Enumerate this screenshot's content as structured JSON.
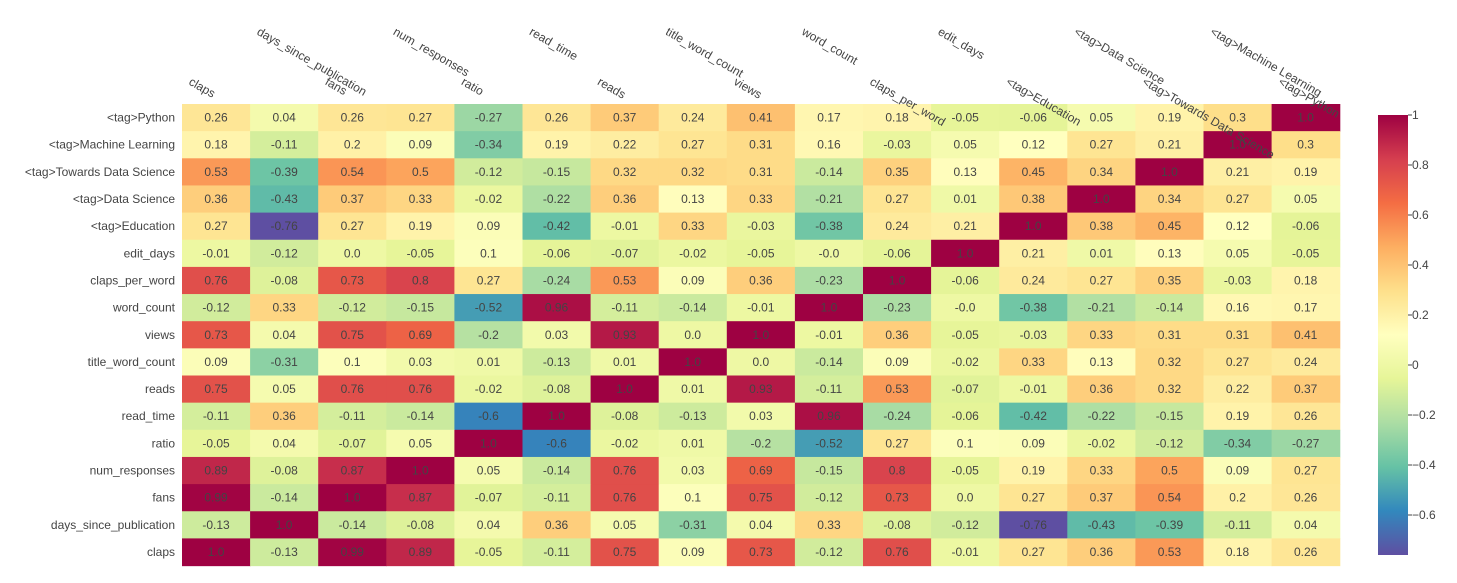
{
  "chart_data": {
    "type": "heatmap",
    "x": [
      "claps",
      "days_since_publication",
      "fans",
      "num_responses",
      "ratio",
      "read_time",
      "reads",
      "title_word_count",
      "views",
      "word_count",
      "claps_per_word",
      "edit_days",
      "<tag>Education",
      "<tag>Data Science",
      "<tag>Towards Data Science",
      "<tag>Machine Learning",
      "<tag>Python"
    ],
    "y": [
      "<tag>Python",
      "<tag>Machine Learning",
      "<tag>Towards Data Science",
      "<tag>Data Science",
      "<tag>Education",
      "edit_days",
      "claps_per_word",
      "word_count",
      "views",
      "title_word_count",
      "reads",
      "read_time",
      "ratio",
      "num_responses",
      "fans",
      "days_since_publication",
      "claps"
    ],
    "z": [
      [
        "0.26",
        "0.04",
        "0.26",
        "0.27",
        "-0.27",
        "0.26",
        "0.37",
        "0.24",
        "0.41",
        "0.17",
        "0.18",
        "-0.05",
        "-0.06",
        "0.05",
        "0.19",
        "0.3",
        "1.0"
      ],
      [
        "0.18",
        "-0.11",
        "0.2",
        "0.09",
        "-0.34",
        "0.19",
        "0.22",
        "0.27",
        "0.31",
        "0.16",
        "-0.03",
        "0.05",
        "0.12",
        "0.27",
        "0.21",
        "1.0",
        "0.3"
      ],
      [
        "0.53",
        "-0.39",
        "0.54",
        "0.5",
        "-0.12",
        "-0.15",
        "0.32",
        "0.32",
        "0.31",
        "-0.14",
        "0.35",
        "0.13",
        "0.45",
        "0.34",
        "1.0",
        "0.21",
        "0.19"
      ],
      [
        "0.36",
        "-0.43",
        "0.37",
        "0.33",
        "-0.02",
        "-0.22",
        "0.36",
        "0.13",
        "0.33",
        "-0.21",
        "0.27",
        "0.01",
        "0.38",
        "1.0",
        "0.34",
        "0.27",
        "0.05"
      ],
      [
        "0.27",
        "-0.76",
        "0.27",
        "0.19",
        "0.09",
        "-0.42",
        "-0.01",
        "0.33",
        "-0.03",
        "-0.38",
        "0.24",
        "0.21",
        "1.0",
        "0.38",
        "0.45",
        "0.12",
        "-0.06"
      ],
      [
        "-0.01",
        "-0.12",
        "0.0",
        "-0.05",
        "0.1",
        "-0.06",
        "-0.07",
        "-0.02",
        "-0.05",
        "-0.0",
        "-0.06",
        "1.0",
        "0.21",
        "0.01",
        "0.13",
        "0.05",
        "-0.05"
      ],
      [
        "0.76",
        "-0.08",
        "0.73",
        "0.8",
        "0.27",
        "-0.24",
        "0.53",
        "0.09",
        "0.36",
        "-0.23",
        "1.0",
        "-0.06",
        "0.24",
        "0.27",
        "0.35",
        "-0.03",
        "0.18"
      ],
      [
        "-0.12",
        "0.33",
        "-0.12",
        "-0.15",
        "-0.52",
        "0.96",
        "-0.11",
        "-0.14",
        "-0.01",
        "1.0",
        "-0.23",
        "-0.0",
        "-0.38",
        "-0.21",
        "-0.14",
        "0.16",
        "0.17"
      ],
      [
        "0.73",
        "0.04",
        "0.75",
        "0.69",
        "-0.2",
        "0.03",
        "0.93",
        "0.0",
        "1.0",
        "-0.01",
        "0.36",
        "-0.05",
        "-0.03",
        "0.33",
        "0.31",
        "0.31",
        "0.41"
      ],
      [
        "0.09",
        "-0.31",
        "0.1",
        "0.03",
        "0.01",
        "-0.13",
        "0.01",
        "1.0",
        "0.0",
        "-0.14",
        "0.09",
        "-0.02",
        "0.33",
        "0.13",
        "0.32",
        "0.27",
        "0.24"
      ],
      [
        "0.75",
        "0.05",
        "0.76",
        "0.76",
        "-0.02",
        "-0.08",
        "1.0",
        "0.01",
        "0.93",
        "-0.11",
        "0.53",
        "-0.07",
        "-0.01",
        "0.36",
        "0.32",
        "0.22",
        "0.37"
      ],
      [
        "-0.11",
        "0.36",
        "-0.11",
        "-0.14",
        "-0.6",
        "1.0",
        "-0.08",
        "-0.13",
        "0.03",
        "0.96",
        "-0.24",
        "-0.06",
        "-0.42",
        "-0.22",
        "-0.15",
        "0.19",
        "0.26"
      ],
      [
        "-0.05",
        "0.04",
        "-0.07",
        "0.05",
        "1.0",
        "-0.6",
        "-0.02",
        "0.01",
        "-0.2",
        "-0.52",
        "0.27",
        "0.1",
        "0.09",
        "-0.02",
        "-0.12",
        "-0.34",
        "-0.27"
      ],
      [
        "0.89",
        "-0.08",
        "0.87",
        "1.0",
        "0.05",
        "-0.14",
        "0.76",
        "0.03",
        "0.69",
        "-0.15",
        "0.8",
        "-0.05",
        "0.19",
        "0.33",
        "0.5",
        "0.09",
        "0.27"
      ],
      [
        "0.99",
        "-0.14",
        "1.0",
        "0.87",
        "-0.07",
        "-0.11",
        "0.76",
        "0.1",
        "0.75",
        "-0.12",
        "0.73",
        "0.0",
        "0.27",
        "0.37",
        "0.54",
        "0.2",
        "0.26"
      ],
      [
        "-0.13",
        "1.0",
        "-0.14",
        "-0.08",
        "0.04",
        "0.36",
        "0.05",
        "-0.31",
        "0.04",
        "0.33",
        "-0.08",
        "-0.12",
        "-0.76",
        "-0.43",
        "-0.39",
        "-0.11",
        "0.04"
      ],
      [
        "1.0",
        "-0.13",
        "0.99",
        "0.89",
        "-0.05",
        "-0.11",
        "0.75",
        "0.09",
        "0.73",
        "-0.12",
        "0.76",
        "-0.01",
        "0.27",
        "0.36",
        "0.53",
        "0.18",
        "0.26"
      ]
    ],
    "zrange": [
      -0.76,
      1.0
    ],
    "colorscale": "Spectral (reversed)",
    "colorbar": {
      "ticks": [
        1,
        0.8,
        0.6,
        0.4,
        0.2,
        0,
        -0.2,
        -0.4,
        -0.6
      ],
      "tick_labels": [
        "1",
        "0.8",
        "0.6",
        "0.4",
        "0.2",
        "0",
        "−0.2",
        "−0.4",
        "−0.6"
      ]
    },
    "x_tick_position": "top",
    "grid": false,
    "title": "",
    "xlabel": "",
    "ylabel": ""
  }
}
